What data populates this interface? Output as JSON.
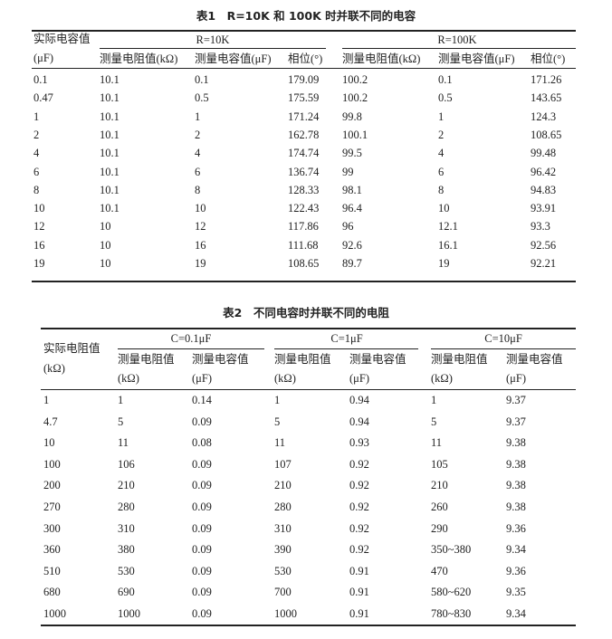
{
  "table1": {
    "title": "表1　R=10K 和 100K 时并联不同的电容",
    "row_header": [
      "实际电容值",
      "(μF)"
    ],
    "groups": [
      "R=10K",
      "R=100K"
    ],
    "subheaders": [
      "测量电阻值(kΩ)",
      "测量电容值(μF)",
      "相位(°)",
      "测量电阻值(kΩ)",
      "测量电容值(μF)",
      "相位(°)"
    ],
    "rows": [
      [
        "0.1",
        "10.1",
        "0.1",
        "179.09",
        "100.2",
        "0.1",
        "171.26"
      ],
      [
        "0.47",
        "10.1",
        "0.5",
        "175.59",
        "100.2",
        "0.5",
        "143.65"
      ],
      [
        "1",
        "10.1",
        "1",
        "171.24",
        "99.8",
        "1",
        "124.3"
      ],
      [
        "2",
        "10.1",
        "2",
        "162.78",
        "100.1",
        "2",
        "108.65"
      ],
      [
        "4",
        "10.1",
        "4",
        "174.74",
        "99.5",
        "4",
        "99.48"
      ],
      [
        "6",
        "10.1",
        "6",
        "136.74",
        "99",
        "6",
        "96.42"
      ],
      [
        "8",
        "10.1",
        "8",
        "128.33",
        "98.1",
        "8",
        "94.83"
      ],
      [
        "10",
        "10.1",
        "10",
        "122.43",
        "96.4",
        "10",
        "93.91"
      ],
      [
        "12",
        "10",
        "12",
        "117.86",
        "96",
        "12.1",
        "93.3"
      ],
      [
        "16",
        "10",
        "16",
        "111.68",
        "92.6",
        "16.1",
        "92.56"
      ],
      [
        "19",
        "10",
        "19",
        "108.65",
        "89.7",
        "19",
        "92.21"
      ]
    ]
  },
  "table2": {
    "title": "表2　不同电容时并联不同的电阻",
    "row_header": [
      "实际电阻值",
      "(kΩ)"
    ],
    "groups": [
      "C=0.1μF",
      "C=1μF",
      "C=10μF"
    ],
    "subheaders": [
      [
        "测量电阻值",
        "(kΩ)"
      ],
      [
        "测量电容值",
        "(μF)"
      ],
      [
        "测量电阻值",
        "(kΩ)"
      ],
      [
        "测量电容值",
        "(μF)"
      ],
      [
        "测量电阻值",
        "(kΩ)"
      ],
      [
        "测量电容值",
        "(μF)"
      ]
    ],
    "rows": [
      [
        "1",
        "1",
        "0.14",
        "1",
        "0.94",
        "1",
        "9.37"
      ],
      [
        "4.7",
        "5",
        "0.09",
        "5",
        "0.94",
        "5",
        "9.37"
      ],
      [
        "10",
        "11",
        "0.08",
        "11",
        "0.93",
        "11",
        "9.38"
      ],
      [
        "100",
        "106",
        "0.09",
        "107",
        "0.92",
        "105",
        "9.38"
      ],
      [
        "200",
        "210",
        "0.09",
        "210",
        "0.92",
        "210",
        "9.38"
      ],
      [
        "270",
        "280",
        "0.09",
        "280",
        "0.92",
        "260",
        "9.38"
      ],
      [
        "300",
        "310",
        "0.09",
        "310",
        "0.92",
        "290",
        "9.36"
      ],
      [
        "360",
        "380",
        "0.09",
        "390",
        "0.92",
        "350~380",
        "9.34"
      ],
      [
        "510",
        "530",
        "0.09",
        "530",
        "0.91",
        "470",
        "9.36"
      ],
      [
        "680",
        "690",
        "0.09",
        "700",
        "0.91",
        "580~620",
        "9.35"
      ],
      [
        "1000",
        "1000",
        "0.09",
        "1000",
        "0.91",
        "780~830",
        "9.34"
      ]
    ]
  }
}
